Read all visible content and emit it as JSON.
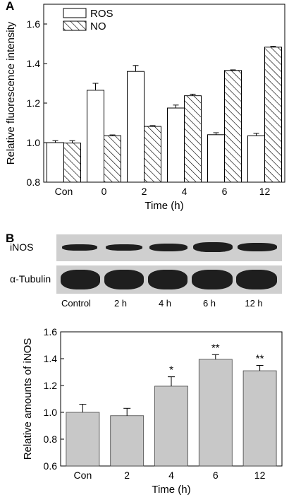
{
  "panel_a": {
    "label": "A",
    "chart_data": {
      "type": "bar",
      "title": "",
      "xlabel": "Time (h)",
      "ylabel": "Relative fluorescence intensity",
      "categories": [
        "Con",
        "0",
        "2",
        "4",
        "6",
        "12"
      ],
      "ylim": [
        0.8,
        1.7
      ],
      "yticks": [
        "0.8",
        "1.0",
        "1.2",
        "1.4",
        "1.6"
      ],
      "legend_position": "top-left",
      "series": [
        {
          "name": "ROS",
          "values": [
            1.0,
            1.265,
            1.36,
            1.175,
            1.04,
            1.035
          ],
          "errors": [
            0.01,
            0.035,
            0.03,
            0.015,
            0.01,
            0.012
          ],
          "fill": "#ffffff"
        },
        {
          "name": "NO",
          "values": [
            0.998,
            1.035,
            1.082,
            1.237,
            1.365,
            1.483
          ],
          "errors": [
            0.012,
            0.004,
            0.004,
            0.008,
            0.003,
            0.004
          ],
          "fill": "hatched"
        }
      ]
    }
  },
  "panel_b": {
    "label": "B",
    "blot": {
      "rows": [
        "iNOS",
        "α-Tubulin"
      ],
      "lanes": [
        "Control",
        "2 h",
        "4 h",
        "6 h",
        "12 h"
      ]
    },
    "chart_data": {
      "type": "bar",
      "title": "",
      "xlabel": "Time (h)",
      "ylabel": "Relative amounts of iNOS",
      "categories": [
        "Con",
        "2",
        "4",
        "6",
        "12"
      ],
      "ylim": [
        0.6,
        1.6
      ],
      "yticks": [
        "0.6",
        "0.8",
        "1.0",
        "1.2",
        "1.4",
        "1.6"
      ],
      "values": [
        1.0,
        0.975,
        1.195,
        1.395,
        1.31
      ],
      "errors": [
        0.06,
        0.055,
        0.07,
        0.035,
        0.04
      ],
      "annotations": [
        "",
        "",
        "*",
        "**",
        "**"
      ],
      "bar_color": "#c8c8c8"
    }
  }
}
